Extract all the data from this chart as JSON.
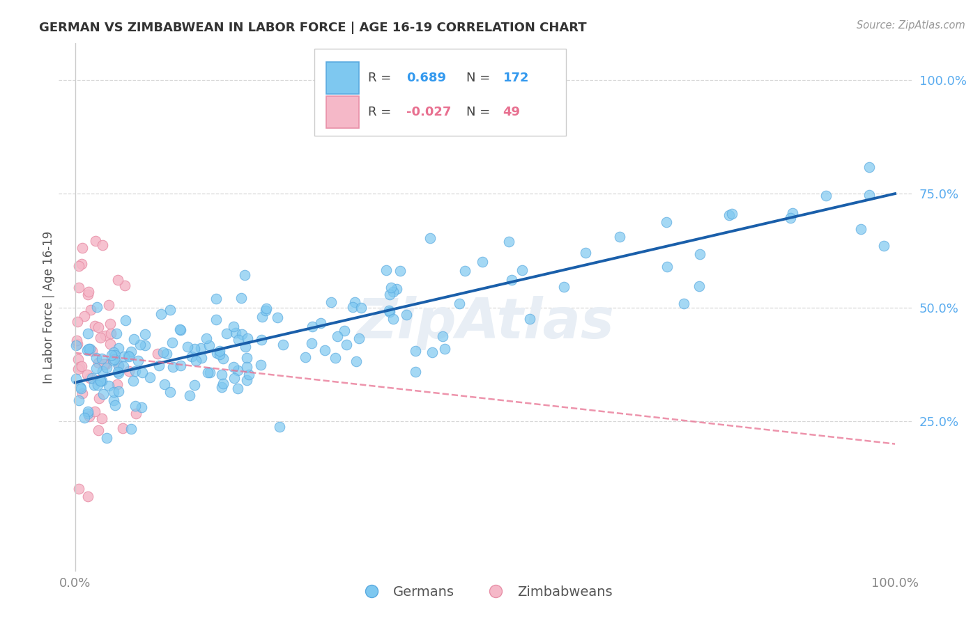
{
  "title": "GERMAN VS ZIMBABWEAN IN LABOR FORCE | AGE 16-19 CORRELATION CHART",
  "source": "Source: ZipAtlas.com",
  "ylabel": "In Labor Force | Age 16-19",
  "xlim": [
    -0.02,
    1.02
  ],
  "ylim": [
    -0.08,
    1.08
  ],
  "xticks": [
    0,
    1
  ],
  "xticklabels": [
    "0.0%",
    "100.0%"
  ],
  "yticks": [
    0.25,
    0.5,
    0.75,
    1.0
  ],
  "yticklabels": [
    "25.0%",
    "50.0%",
    "75.0%",
    "100.0%"
  ],
  "german_R": 0.689,
  "german_N": 172,
  "zimbabwean_R": -0.027,
  "zimbabwean_N": 49,
  "german_color": "#7ec8f0",
  "german_edge_color": "#5aaae0",
  "zimbabwean_color": "#f5b8c8",
  "zimbabwean_edge_color": "#e890a8",
  "german_line_color": "#1a5faa",
  "zimbabwean_line_color": "#e87090",
  "watermark": "ZipAtlas",
  "watermark_color": "#e8eef5",
  "background_color": "#ffffff",
  "grid_color": "#d8d8d8",
  "axis_color": "#cccccc",
  "tick_color": "#888888",
  "title_color": "#333333",
  "source_color": "#999999",
  "right_tick_color": "#5aacef",
  "legend_border_color": "#cccccc",
  "legend_text_color": "#444444",
  "legend_blue_val_color": "#3399ee",
  "legend_pink_val_color": "#e87090",
  "bottom_legend_color": "#555555",
  "german_intercept": 0.335,
  "german_slope": 0.415,
  "german_noise": 0.065,
  "zimb_intercept": 0.4,
  "zimb_slope": -0.2,
  "zimb_noise": 0.1,
  "german_seed": 12345,
  "zimbabwean_seed": 9876
}
